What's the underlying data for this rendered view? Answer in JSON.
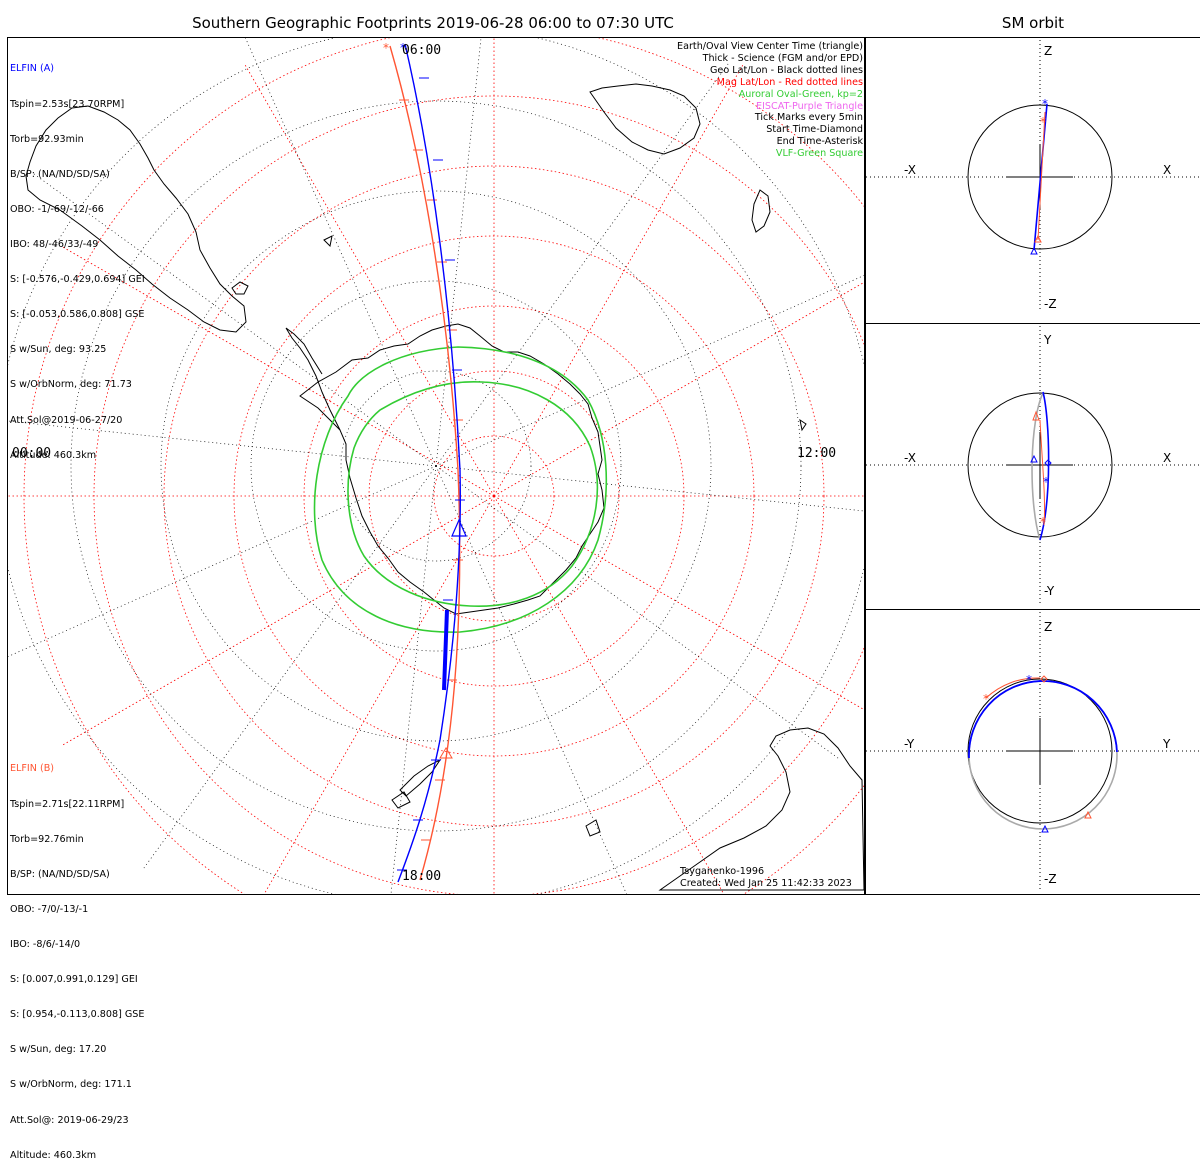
{
  "header": {
    "title": "Southern Geographic Footprints 2019-06-28 06:00 to 07:30 UTC",
    "sm_title": "SM orbit"
  },
  "time_labels": {
    "top": "06:00",
    "left": "00:00",
    "right": "12:00",
    "bottom": "18:00"
  },
  "elfin_a": {
    "name": "ELFIN (A)",
    "color": "#0000ff",
    "lines": [
      "Tspin=2.53s[23.70RPM]",
      "Torb=92.93min",
      "B/SP: (NA/ND/SD/SA)",
      "OBO: -1/-69/-12/-66",
      "IBO: 48/-46/33/-49",
      "S: [-0.576,-0.429,0.694] GEI",
      "S: [-0.053,0.586,0.808] GSE",
      "S w/Sun, deg: 93.25",
      "S w/OrbNorm, deg: 71.73",
      "Att.Sol@2019-06-27/20",
      "Altitude: 460.3km"
    ]
  },
  "elfin_b": {
    "name": "ELFIN (B)",
    "color": "#ff5533",
    "lines": [
      "Tspin=2.71s[22.11RPM]",
      "Torb=92.76min",
      "B/SP: (NA/ND/SD/SA)",
      "OBO: -7/0/-13/-1",
      "IBO: -8/6/-14/0",
      "S: [0.007,0.991,0.129] GEI",
      "S: [0.954,-0.113,0.808] GSE",
      "S w/Sun, deg: 17.20",
      "S w/OrbNorm, deg: 171.1",
      "Att.Sol@: 2019-06-29/23",
      "Altitude: 460.3km"
    ]
  },
  "legend": [
    {
      "text": "Earth/Oval View Center Time (triangle)",
      "color": "#000000"
    },
    {
      "text": "Thick - Science (FGM and/or EPD)",
      "color": "#000000"
    },
    {
      "text": "Geo Lat/Lon - Black dotted lines",
      "color": "#000000"
    },
    {
      "text": "Mag Lat/Lon - Red dotted lines",
      "color": "#ff0000"
    },
    {
      "text": "Auroral Oval-Green, kp=2",
      "color": "#33cc33"
    },
    {
      "text": "EISCAT-Purple Triangle",
      "color": "#ee66ee"
    },
    {
      "text": "Tick Marks every 5min",
      "color": "#000000"
    },
    {
      "text": "Start Time-Diamond",
      "color": "#000000"
    },
    {
      "text": "End Time-Asterisk",
      "color": "#000000"
    },
    {
      "text": "VLF-Green Square",
      "color": "#33cc33"
    }
  ],
  "credits": {
    "model": "Tsyganenko-1996",
    "created": "Created: Wed Jan 25 11:42:33 2023"
  },
  "sm_panels": [
    {
      "left": "-X",
      "right": "X",
      "top": "Z",
      "bottom": "-Z"
    },
    {
      "left": "-X",
      "right": "X",
      "top": "Y",
      "bottom": "-Y"
    },
    {
      "left": "-Y",
      "right": "Y",
      "top": "Z",
      "bottom": "-Z"
    }
  ],
  "colors": {
    "geo_grid": "#000000",
    "mag_grid": "#ff0000",
    "oval": "#33cc33",
    "coast": "#000000",
    "elfin_a": "#0000ff",
    "elfin_b": "#ff5533"
  }
}
